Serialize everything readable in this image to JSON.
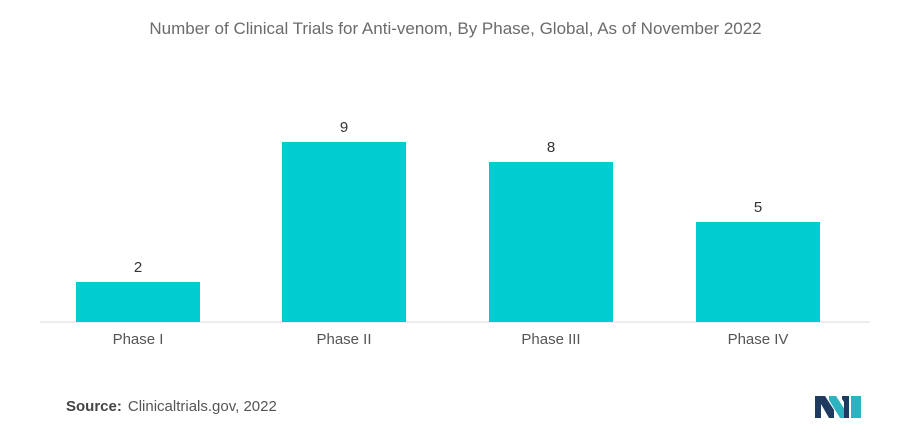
{
  "chart_data": {
    "type": "bar",
    "title": "Number of Clinical Trials for Anti-venom, By Phase, Global,  As of November 2022",
    "categories": [
      "Phase I",
      "Phase II",
      "Phase III",
      "Phase IV"
    ],
    "values": [
      2,
      9,
      8,
      5
    ],
    "xlabel": "",
    "ylabel": "",
    "ylim": [
      0,
      10
    ],
    "grid": false,
    "legend": "none",
    "bar_color": "#00cdd0",
    "data_labels": true
  },
  "source": {
    "label": "Source:",
    "text": "Clinicaltrials.gov, 2022"
  },
  "logo": {
    "icon": "mordor-intelligence-logo-icon",
    "color_dark": "#1f3a5f",
    "color_light": "#2bb3c0"
  }
}
